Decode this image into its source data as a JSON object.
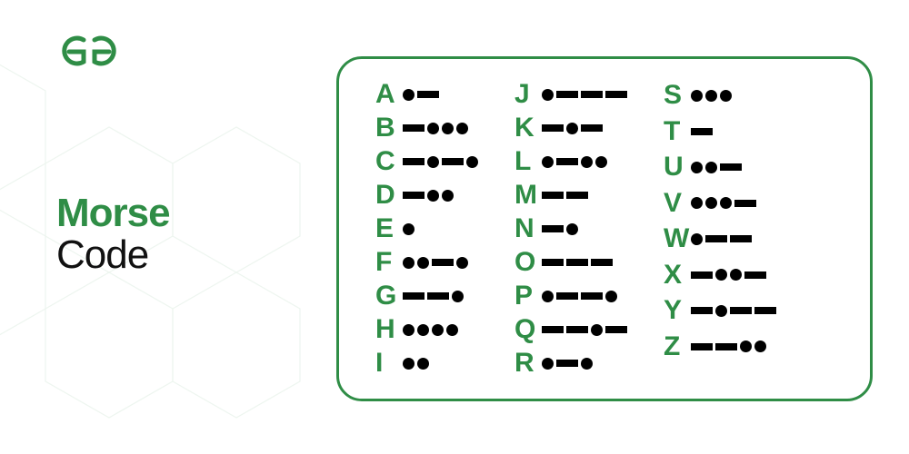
{
  "brand": {
    "accent_color": "#2f8d46",
    "text_color": "#111111"
  },
  "title": {
    "line1": "Morse",
    "line2": "Code",
    "line1_color": "#2f8d46",
    "line2_color": "#111111"
  },
  "chart": {
    "type": "infographic",
    "border_color": "#2f8d46",
    "letter_color": "#2f8d46",
    "symbol_color": "#000000",
    "background_color": "#ffffff",
    "dot_size": 13,
    "dash_width": 24,
    "dash_height": 8,
    "letter_fontsize": 30,
    "columns": [
      [
        {
          "letter": "A",
          "code": ".-"
        },
        {
          "letter": "B",
          "code": "-..."
        },
        {
          "letter": "C",
          "code": "-.-."
        },
        {
          "letter": "D",
          "code": "-.."
        },
        {
          "letter": "E",
          "code": "."
        },
        {
          "letter": "F",
          "code": "..-."
        },
        {
          "letter": "G",
          "code": "--."
        },
        {
          "letter": "H",
          "code": "...."
        },
        {
          "letter": "I",
          "code": ".."
        }
      ],
      [
        {
          "letter": "J",
          "code": ".---"
        },
        {
          "letter": "K",
          "code": "-.-"
        },
        {
          "letter": "L",
          "code": ".-.."
        },
        {
          "letter": "M",
          "code": "--"
        },
        {
          "letter": "N",
          "code": "-."
        },
        {
          "letter": "O",
          "code": "---"
        },
        {
          "letter": "P",
          "code": ".--."
        },
        {
          "letter": "Q",
          "code": "--.-"
        },
        {
          "letter": "R",
          "code": ".-."
        }
      ],
      [
        {
          "letter": "S",
          "code": "..."
        },
        {
          "letter": "T",
          "code": "-"
        },
        {
          "letter": "U",
          "code": "..-"
        },
        {
          "letter": "V",
          "code": "...-"
        },
        {
          "letter": "W",
          "code": ".--"
        },
        {
          "letter": "X",
          "code": "-..-"
        },
        {
          "letter": "Y",
          "code": "-.--"
        },
        {
          "letter": "Z",
          "code": "--.."
        }
      ]
    ]
  }
}
